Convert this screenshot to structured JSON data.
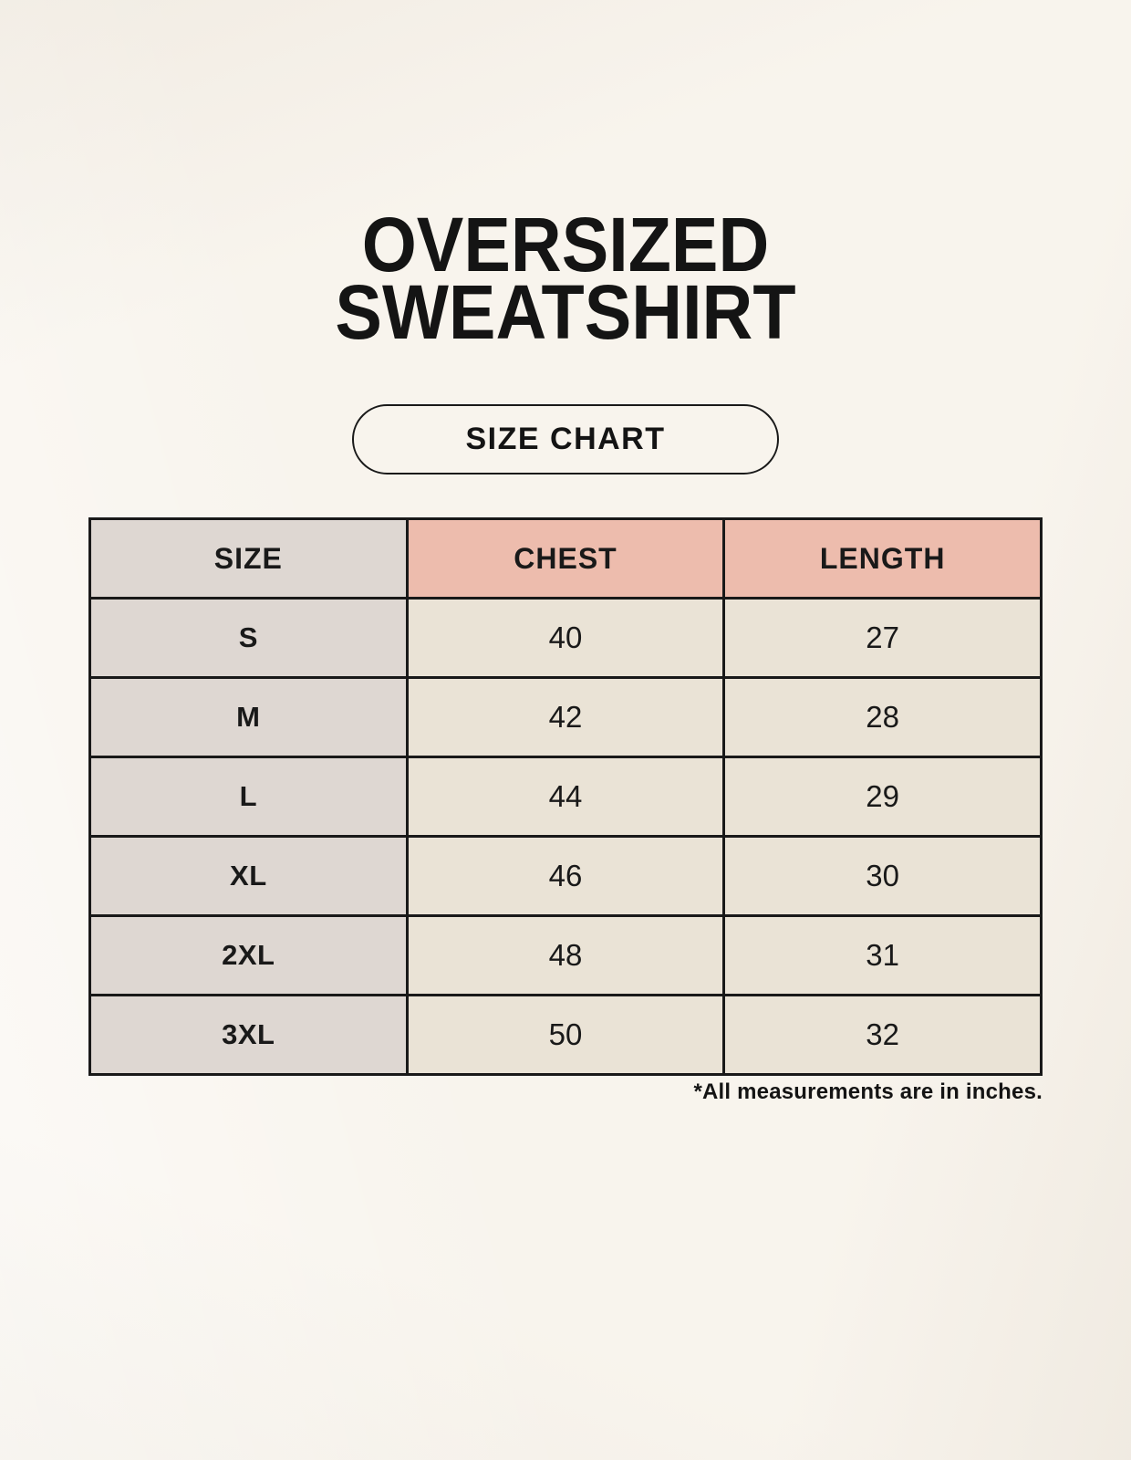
{
  "header": {
    "title_line1": "OVERSIZED",
    "title_line2": "SWEATSHIRT",
    "badge_label": "SIZE CHART"
  },
  "footnote": "*All measurements are in inches.",
  "colors": {
    "background": "#f8f4ed",
    "accent_header": "#edbcad",
    "size_column": "#ded7d2",
    "value_cell": "#eae3d6",
    "border": "#191919",
    "text": "#191919"
  },
  "chart_data": {
    "type": "table",
    "title": "OVERSIZED SWEATSHIRT",
    "subtitle": "SIZE CHART",
    "columns": [
      "SIZE",
      "CHEST",
      "LENGTH"
    ],
    "rows": [
      [
        "S",
        "40",
        "27"
      ],
      [
        "M",
        "42",
        "28"
      ],
      [
        "L",
        "44",
        "29"
      ],
      [
        "XL",
        "46",
        "30"
      ],
      [
        "2XL",
        "48",
        "31"
      ],
      [
        "3XL",
        "50",
        "32"
      ]
    ],
    "units": "inches"
  }
}
